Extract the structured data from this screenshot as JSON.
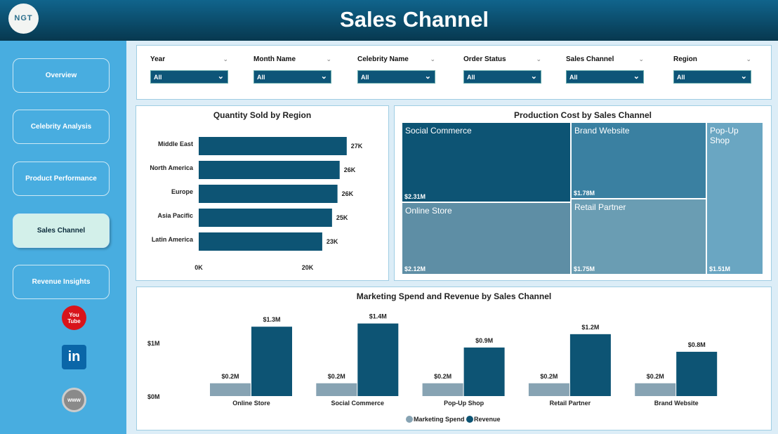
{
  "header": {
    "logo_text": "NGT",
    "title": "Sales Channel"
  },
  "sidebar": {
    "items": [
      {
        "label": "Overview"
      },
      {
        "label": "Celebrity Analysis"
      },
      {
        "label": "Product Performance"
      },
      {
        "label": "Sales Channel",
        "active": true
      },
      {
        "label": "Revenue Insights"
      }
    ],
    "social": [
      {
        "name": "youtube-icon",
        "label": "You Tube"
      },
      {
        "name": "linkedin-icon",
        "label": "in"
      },
      {
        "name": "www-icon",
        "label": "www"
      }
    ]
  },
  "filters": [
    {
      "label": "Year",
      "value": "All"
    },
    {
      "label": "Month Name",
      "value": "All"
    },
    {
      "label": "Celebrity Name",
      "value": "All"
    },
    {
      "label": "Order Status",
      "value": "All"
    },
    {
      "label": "Sales Channel",
      "value": "All"
    },
    {
      "label": "Region",
      "value": "All"
    }
  ],
  "chart_data": [
    {
      "type": "bar",
      "orientation": "horizontal",
      "title": "Quantity Sold by Region",
      "categories": [
        "Middle East",
        "North America",
        "Europe",
        "Asia Pacific",
        "Latin America"
      ],
      "values": [
        27.2,
        25.9,
        25.5,
        24.5,
        22.7
      ],
      "labels": [
        "27K",
        "26K",
        "26K",
        "25K",
        "23K"
      ],
      "xticks": [
        "0K",
        "20K"
      ],
      "xlim": [
        0,
        30
      ]
    },
    {
      "type": "treemap",
      "title": "Production Cost by Sales Channel",
      "items": [
        {
          "name": "Social Commerce",
          "value": "$2.31M"
        },
        {
          "name": "Online Store",
          "value": "$2.12M"
        },
        {
          "name": "Brand Website",
          "value": "$1.78M"
        },
        {
          "name": "Retail Partner",
          "value": "$1.75M"
        },
        {
          "name": "Pop-Up Shop",
          "value": "$1.51M"
        }
      ],
      "colors": [
        "#0d5474",
        "#5e8ea5",
        "#3a80a1",
        "#6a9db3",
        "#6aa6c2"
      ]
    },
    {
      "type": "bar",
      "title": "Marketing Spend and Revenue by Sales Channel",
      "categories": [
        "Online Store",
        "Social Commerce",
        "Pop-Up Shop",
        "Retail Partner",
        "Brand Website"
      ],
      "series": [
        {
          "name": "Marketing Spend",
          "color": "#87a3b3",
          "values": [
            0.24,
            0.24,
            0.24,
            0.24,
            0.24
          ],
          "labels": [
            "$0.2M",
            "$0.2M",
            "$0.2M",
            "$0.2M",
            "$0.2M"
          ]
        },
        {
          "name": "Revenue",
          "color": "#0d5474",
          "values": [
            1.3,
            1.36,
            0.91,
            1.16,
            0.83
          ],
          "labels": [
            "$1.3M",
            "$1.4M",
            "$0.9M",
            "$1.2M",
            "$0.8M"
          ]
        }
      ],
      "yticks": [
        {
          "v": 0,
          "label": "$0M"
        },
        {
          "v": 1,
          "label": "$1M"
        }
      ],
      "ylim": [
        0,
        1.5
      ]
    }
  ]
}
